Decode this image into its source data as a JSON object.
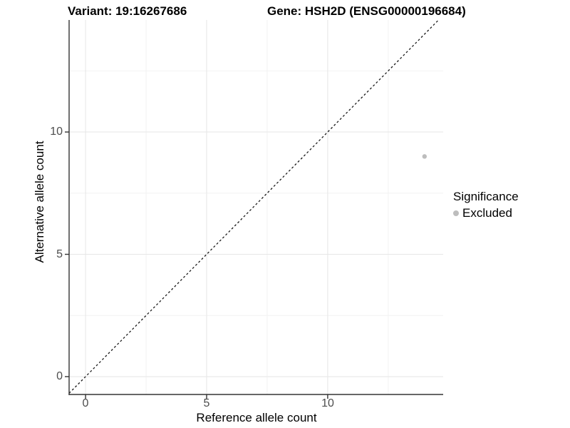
{
  "header": {
    "left_title": "Variant: 19:16267686",
    "right_title": "Gene: HSH2D (ENSG00000196684)"
  },
  "legend": {
    "title": "Significance",
    "position": "right",
    "items": [
      {
        "label": "Excluded",
        "color": "#bdbdbd",
        "marker": "circle"
      }
    ]
  },
  "colors": {
    "background": "#ffffff",
    "axis_line": "#333333",
    "tick_label": "#4d4d4d",
    "text": "#000000",
    "grid_major": "#e6e6e6",
    "grid_minor": "#f2f2f2",
    "point": "#bdbdbd",
    "reference_line": "#1a1a1a"
  },
  "chart_data": {
    "type": "scatter",
    "title_left": "Variant: 19:16267686",
    "title_right": "Gene: HSH2D (ENSG00000196684)",
    "xlabel": "Reference allele count",
    "ylabel": "Alternative allele count",
    "xlim": [
      -0.68,
      14.77
    ],
    "ylim": [
      -0.73,
      14.58
    ],
    "x_ticks": [
      0,
      5,
      10
    ],
    "y_ticks": [
      0,
      5,
      10
    ],
    "minor_x": [
      2.5,
      7.5,
      12.5
    ],
    "minor_y": [
      2.5,
      7.5,
      12.5
    ],
    "grid": "major+minor",
    "legend_position": "right",
    "series": [
      {
        "name": "Excluded",
        "color": "#bdbdbd",
        "point_radius": 3.2,
        "points": [
          [
            14,
            9
          ]
        ]
      }
    ],
    "reference_line": {
      "type": "identity y=x",
      "style": "dashed",
      "color": "#1a1a1a"
    }
  }
}
